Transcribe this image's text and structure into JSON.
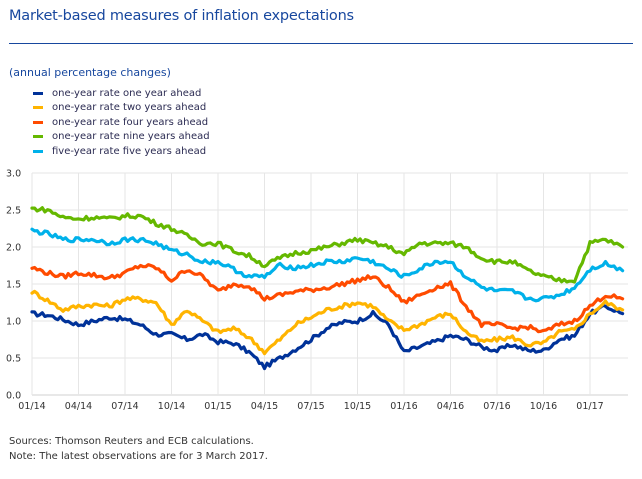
{
  "header": {
    "title": "Market-based measures of inflation expectations",
    "subtitle": "(annual percentage changes)"
  },
  "footer": {
    "sources": "Sources: Thomson Reuters and ECB calculations.",
    "note": "Note: The latest observations are for 3 March 2017."
  },
  "chart_data": {
    "type": "line",
    "title": "Market-based measures of inflation expectations",
    "subtitle": "(annual percentage changes)",
    "xlabel": "",
    "ylabel": "",
    "ylim": [
      0.0,
      3.0
    ],
    "yticks": [
      "0.0",
      "0.5",
      "1.0",
      "1.5",
      "2.0",
      "2.5",
      "3.0"
    ],
    "xticks": [
      "01/14",
      "04/14",
      "07/14",
      "10/14",
      "01/15",
      "04/15",
      "07/15",
      "10/15",
      "01/16",
      "04/16",
      "07/16",
      "10/16",
      "01/17"
    ],
    "x_units": "months since 01/14",
    "xlim": [
      0,
      38.1
    ],
    "grid": true,
    "legend_position": "top-left",
    "x": [
      0,
      1,
      2,
      3,
      4,
      5,
      6,
      7,
      8,
      9,
      10,
      11,
      12,
      13,
      14,
      15,
      16,
      17,
      18,
      19,
      20,
      21,
      22,
      23,
      24,
      25,
      26,
      27,
      28,
      29,
      30,
      31,
      32,
      33,
      34,
      35,
      36,
      37,
      38.1
    ],
    "series": [
      {
        "name": "one-year rate one year ahead",
        "color": "#003299",
        "values": [
          1.1,
          1.08,
          1.02,
          0.95,
          1.0,
          1.05,
          1.02,
          0.95,
          0.82,
          0.82,
          0.75,
          0.82,
          0.72,
          0.7,
          0.58,
          0.38,
          0.5,
          0.62,
          0.75,
          0.9,
          0.98,
          1.0,
          1.1,
          0.95,
          0.58,
          0.65,
          0.72,
          0.8,
          0.75,
          0.65,
          0.6,
          0.68,
          0.6,
          0.6,
          0.75,
          0.8,
          1.1,
          1.2,
          1.1
        ]
      },
      {
        "name": "one-year rate two years ahead",
        "color": "#ffb400",
        "values": [
          1.4,
          1.28,
          1.15,
          1.2,
          1.22,
          1.2,
          1.3,
          1.3,
          1.25,
          0.95,
          1.15,
          1.0,
          0.85,
          0.9,
          0.78,
          0.58,
          0.75,
          0.95,
          1.05,
          1.15,
          1.2,
          1.25,
          1.2,
          1.0,
          0.88,
          0.95,
          1.05,
          1.1,
          0.85,
          0.72,
          0.75,
          0.78,
          0.68,
          0.7,
          0.85,
          0.88,
          1.1,
          1.25,
          1.15
        ]
      },
      {
        "name": "one-year rate four years ahead",
        "color": "#ff4b00",
        "values": [
          1.72,
          1.65,
          1.6,
          1.65,
          1.62,
          1.58,
          1.65,
          1.75,
          1.72,
          1.55,
          1.7,
          1.6,
          1.4,
          1.5,
          1.48,
          1.3,
          1.35,
          1.4,
          1.42,
          1.45,
          1.5,
          1.55,
          1.6,
          1.45,
          1.25,
          1.35,
          1.45,
          1.5,
          1.2,
          0.95,
          0.95,
          0.9,
          0.92,
          0.85,
          0.95,
          1.0,
          1.2,
          1.35,
          1.3
        ]
      },
      {
        "name": "one-year rate nine years ahead",
        "color": "#65b800",
        "values": [
          2.52,
          2.5,
          2.4,
          2.38,
          2.4,
          2.38,
          2.42,
          2.42,
          2.32,
          2.25,
          2.15,
          2.05,
          2.05,
          1.95,
          1.88,
          1.75,
          1.85,
          1.92,
          1.95,
          2.0,
          2.05,
          2.1,
          2.05,
          2.0,
          1.9,
          2.05,
          2.05,
          2.05,
          2.0,
          1.85,
          1.8,
          1.8,
          1.68,
          1.6,
          1.55,
          1.55,
          2.05,
          2.1,
          2.0
        ]
      },
      {
        "name": "five-year rate five years ahead",
        "color": "#00b1ea",
        "values": [
          2.22,
          2.18,
          2.1,
          2.1,
          2.1,
          2.05,
          2.1,
          2.1,
          2.05,
          1.95,
          1.9,
          1.8,
          1.8,
          1.7,
          1.6,
          1.6,
          1.75,
          1.72,
          1.75,
          1.8,
          1.8,
          1.85,
          1.8,
          1.7,
          1.6,
          1.7,
          1.8,
          1.8,
          1.6,
          1.45,
          1.4,
          1.4,
          1.3,
          1.3,
          1.35,
          1.45,
          1.7,
          1.78,
          1.68
        ]
      }
    ]
  }
}
